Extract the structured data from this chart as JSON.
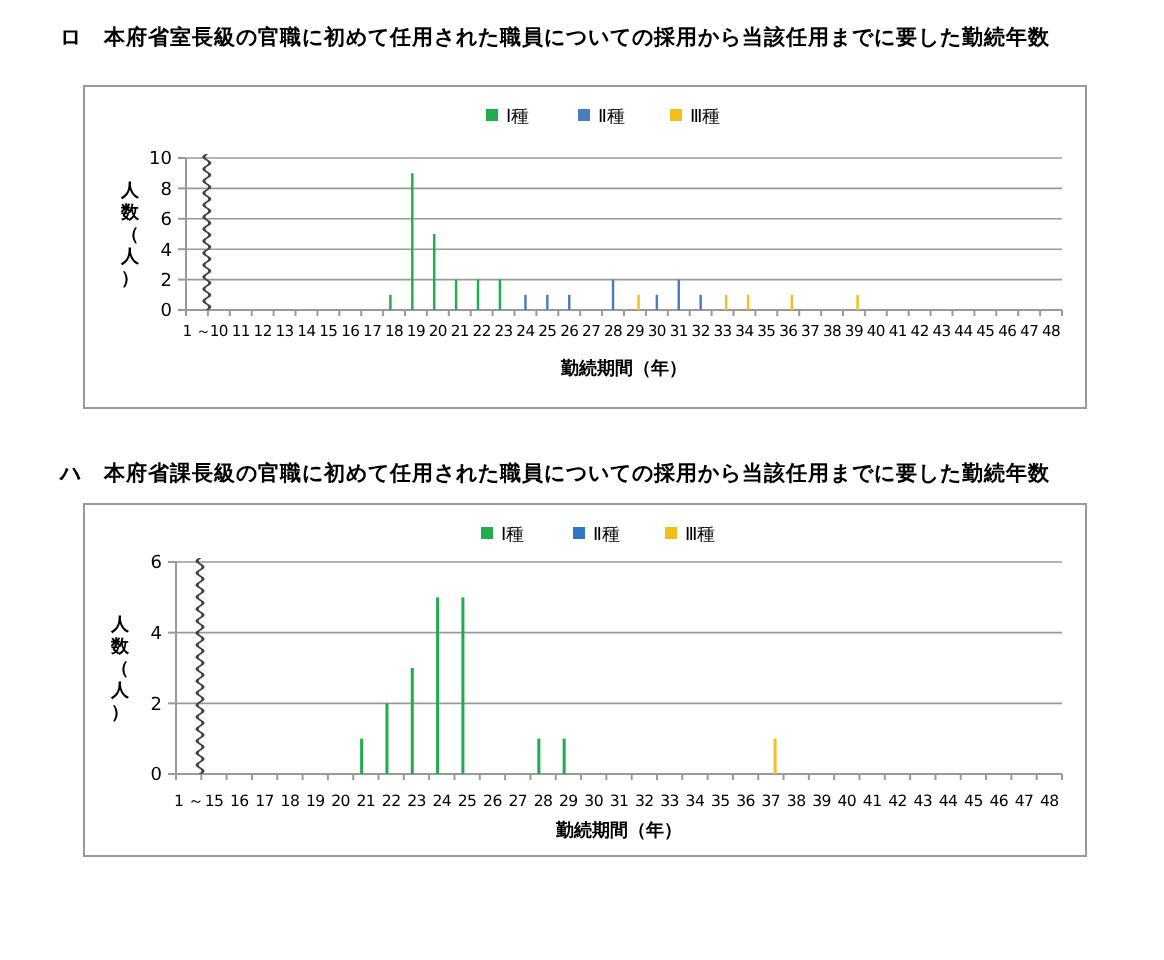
{
  "chart_data": [
    {
      "type": "bar",
      "title": "ロ　本府省室長級の官職に初めて任用された職員についての採用から当該任用までに要した勤続年数",
      "xlabel": "勤続期間（年）",
      "ylabel": "人数（人）",
      "categories": [
        "1 ～",
        "10",
        "11",
        "12",
        "13",
        "14",
        "15",
        "16",
        "17",
        "18",
        "19",
        "20",
        "21",
        "22",
        "23",
        "24",
        "25",
        "26",
        "27",
        "28",
        "29",
        "30",
        "31",
        "32",
        "33",
        "34",
        "35",
        "36",
        "37",
        "38",
        "39",
        "40",
        "41",
        "42",
        "43",
        "44",
        "45",
        "46",
        "47",
        "48"
      ],
      "series": [
        {
          "name": "Ⅰ種",
          "color": "#1fae4b",
          "values": [
            0,
            0,
            0,
            0,
            0,
            0,
            0,
            0,
            0,
            1,
            9,
            5,
            2,
            2,
            2,
            0,
            0,
            0,
            0,
            0,
            0,
            0,
            0,
            0,
            0,
            0,
            0,
            0,
            0,
            0,
            0,
            0,
            0,
            0,
            0,
            0,
            0,
            0,
            0,
            0
          ]
        },
        {
          "name": "Ⅱ種",
          "color": "#4a7ebb",
          "values": [
            0,
            0,
            0,
            0,
            0,
            0,
            0,
            0,
            0,
            0,
            0,
            0,
            0,
            0,
            0,
            1,
            1,
            1,
            0,
            2,
            0,
            1,
            2,
            1,
            0,
            0,
            0,
            0,
            0,
            0,
            0,
            0,
            0,
            0,
            0,
            0,
            0,
            0,
            0,
            0
          ]
        },
        {
          "name": "Ⅲ種",
          "color": "#f4bf1c",
          "values": [
            0,
            0,
            0,
            0,
            0,
            0,
            0,
            0,
            0,
            0,
            0,
            0,
            0,
            0,
            0,
            0,
            0,
            0,
            0,
            0,
            1,
            0,
            0,
            0,
            1,
            1,
            0,
            1,
            0,
            0,
            1,
            0,
            0,
            0,
            0,
            0,
            0,
            0,
            0,
            0
          ]
        }
      ],
      "ylim": [
        0,
        10
      ],
      "yticks": [
        0,
        2,
        4,
        6,
        8,
        10
      ],
      "grid": "y",
      "legend": "top"
    },
    {
      "type": "bar",
      "title": "ハ　本府省課長級の官職に初めて任用された職員についての採用から当該任用までに要した勤続年数",
      "xlabel": "勤続期間（年）",
      "ylabel": "人数（人）",
      "categories": [
        "1 ～",
        "15",
        "16",
        "17",
        "18",
        "19",
        "20",
        "21",
        "22",
        "23",
        "24",
        "25",
        "26",
        "27",
        "28",
        "29",
        "30",
        "31",
        "32",
        "33",
        "34",
        "35",
        "36",
        "37",
        "38",
        "39",
        "40",
        "41",
        "42",
        "43",
        "44",
        "45",
        "46",
        "47",
        "48"
      ],
      "series": [
        {
          "name": "Ⅰ種",
          "color": "#1fae4b",
          "values": [
            0,
            0,
            0,
            0,
            0,
            0,
            0,
            1,
            2,
            3,
            5,
            5,
            0,
            0,
            1,
            1,
            0,
            0,
            0,
            0,
            0,
            0,
            0,
            0,
            0,
            0,
            0,
            0,
            0,
            0,
            0,
            0,
            0,
            0,
            0
          ]
        },
        {
          "name": "Ⅱ種",
          "color": "#2f75c8",
          "values": [
            0,
            0,
            0,
            0,
            0,
            0,
            0,
            0,
            0,
            0,
            0,
            0,
            0,
            0,
            0,
            0,
            0,
            0,
            0,
            0,
            0,
            0,
            0,
            0,
            0,
            0,
            0,
            0,
            0,
            0,
            0,
            0,
            0,
            0,
            0
          ]
        },
        {
          "name": "Ⅲ種",
          "color": "#f4bf1c",
          "values": [
            0,
            0,
            0,
            0,
            0,
            0,
            0,
            0,
            0,
            0,
            0,
            0,
            0,
            0,
            0,
            0,
            0,
            0,
            0,
            0,
            0,
            0,
            0,
            1,
            0,
            0,
            0,
            0,
            0,
            0,
            0,
            0,
            0,
            0,
            0
          ]
        }
      ],
      "ylim": [
        0,
        6
      ],
      "yticks": [
        0,
        2,
        4,
        6
      ],
      "grid": "y",
      "legend": "top"
    }
  ]
}
